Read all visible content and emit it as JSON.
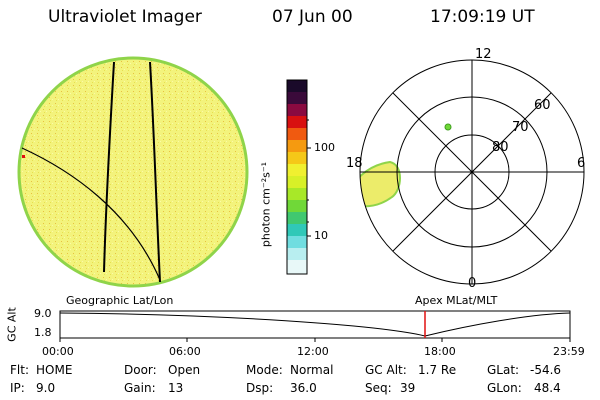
{
  "header": {
    "instrument": "Ultraviolet Imager",
    "date": "07 Jun 00",
    "time": "17:09:19 UT"
  },
  "colorbar": {
    "label": "photon cm⁻²s⁻¹",
    "ticks": [
      "100",
      "10"
    ]
  },
  "polar_plot": {
    "mlt_labels": [
      "12",
      "18",
      "6",
      "0"
    ],
    "lat_labels": [
      "60",
      "70",
      "80"
    ]
  },
  "timeline": {
    "left_title": "Geographic Lat/Lon",
    "right_title": "Apex MLat/MLT",
    "y_axis_label": "GC Alt",
    "y_ticks": [
      "9.0",
      "1.8"
    ],
    "x_ticks": [
      "00:00",
      "06:00",
      "12:00",
      "18:00",
      "23:59"
    ]
  },
  "info": {
    "row1": {
      "flt_label": "Flt:",
      "flt_value": "HOME",
      "door_label": "Door:",
      "door_value": "Open",
      "mode_label": "Mode:",
      "mode_value": "Normal",
      "gcalt_label": "GC Alt:",
      "gcalt_value": "1.7 Re",
      "glat_label": "GLat:",
      "glat_value": "-54.6"
    },
    "row2": {
      "ip_label": "IP:",
      "ip_value": "9.0",
      "gain_label": "Gain:",
      "gain_value": "13",
      "dsp_label": "Dsp:",
      "dsp_value": "36.0",
      "seq_label": "Seq:",
      "seq_value": "39",
      "glon_label": "GLon:",
      "glon_value": "48.4"
    }
  },
  "colors": {
    "disk_fill": "#f2f27a",
    "disk_edge": "#8fd44a",
    "aurora_fill": "#ecec6a",
    "marker_red": "#e01010"
  }
}
